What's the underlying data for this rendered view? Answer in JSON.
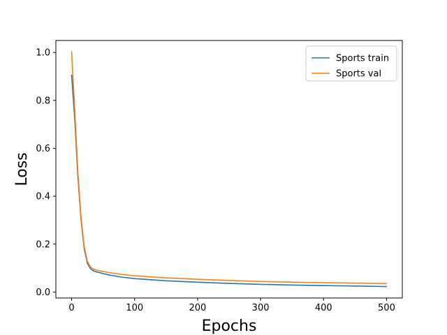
{
  "chart_data": {
    "type": "line",
    "title": "",
    "xlabel": "Epochs",
    "ylabel": "Loss",
    "xlim": [
      -25,
      525
    ],
    "ylim": [
      -0.025,
      1.05
    ],
    "xticks": [
      0,
      100,
      200,
      300,
      400,
      500
    ],
    "yticks": [
      0.0,
      0.2,
      0.4,
      0.6,
      0.8,
      1.0
    ],
    "xtick_labels": [
      "0",
      "100",
      "200",
      "300",
      "400",
      "500"
    ],
    "ytick_labels": [
      "0.0",
      "0.2",
      "0.4",
      "0.6",
      "0.8",
      "1.0"
    ],
    "grid": false,
    "legend_position": "upper right",
    "series": [
      {
        "name": "Sports train",
        "color": "#1f77b4",
        "x": [
          0,
          5,
          10,
          15,
          20,
          25,
          30,
          35,
          40,
          50,
          60,
          80,
          100,
          150,
          200,
          250,
          300,
          350,
          400,
          450,
          500
        ],
        "y": [
          0.905,
          0.72,
          0.48,
          0.3,
          0.18,
          0.12,
          0.097,
          0.088,
          0.084,
          0.077,
          0.071,
          0.062,
          0.056,
          0.047,
          0.041,
          0.036,
          0.032,
          0.029,
          0.027,
          0.025,
          0.023
        ]
      },
      {
        "name": "Sports val",
        "color": "#ff7f0e",
        "x": [
          0,
          5,
          10,
          15,
          20,
          25,
          30,
          35,
          40,
          50,
          60,
          80,
          100,
          150,
          200,
          250,
          300,
          350,
          400,
          450,
          500
        ],
        "y": [
          1.002,
          0.76,
          0.5,
          0.31,
          0.19,
          0.128,
          0.104,
          0.095,
          0.091,
          0.086,
          0.081,
          0.073,
          0.068,
          0.059,
          0.053,
          0.048,
          0.044,
          0.041,
          0.039,
          0.037,
          0.035
        ]
      }
    ]
  }
}
